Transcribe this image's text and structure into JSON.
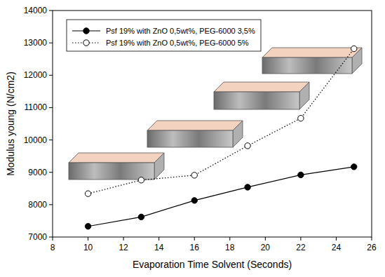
{
  "chart_data": {
    "type": "line",
    "x_label": "Evaporation Time Solvent (Seconds)",
    "y_label": "Modulus young (N/cm2)",
    "x": [
      10,
      13,
      16,
      19,
      22,
      25
    ],
    "xlim": [
      8,
      26
    ],
    "xticks": [
      8,
      10,
      12,
      14,
      16,
      18,
      20,
      22,
      24,
      26
    ],
    "ylim": [
      7000,
      14000
    ],
    "yticks": [
      7000,
      8000,
      9000,
      10000,
      11000,
      12000,
      13000,
      14000
    ],
    "legend": "upper left",
    "grid": false,
    "series": [
      {
        "name": "Psf 19% with ZnO 0,5wt%, PEG-6000 3,5%",
        "color": "#000000",
        "marker": "filled_circle",
        "line_style": "solid",
        "values": [
          7330,
          7620,
          8130,
          8540,
          8920,
          9170
        ]
      },
      {
        "name": "Psf 19% with ZnO 0,5wt%, PEG-6000 5%",
        "color": "#000000",
        "marker": "open_circle",
        "line_style": "dotted",
        "values": [
          8340,
          8760,
          8910,
          9820,
          10670,
          12820
        ]
      }
    ]
  }
}
